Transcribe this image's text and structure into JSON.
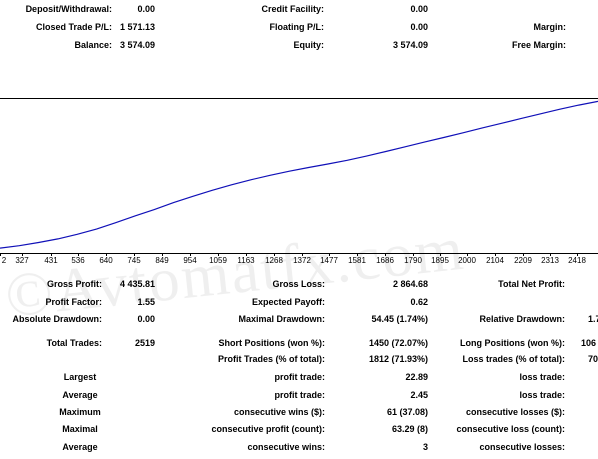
{
  "account": {
    "deposit_withdrawal_label": "Deposit/Withdrawal:",
    "deposit_withdrawal_value": "0.00",
    "credit_facility_label": "Credit Facility:",
    "credit_facility_value": "0.00",
    "closed_trade_pl_label": "Closed Trade P/L:",
    "closed_trade_pl_value": "1 571.13",
    "floating_pl_label": "Floating P/L:",
    "floating_pl_value": "0.00",
    "margin_label": "Margin:",
    "balance_label": "Balance:",
    "balance_value": "3 574.09",
    "equity_label": "Equity:",
    "equity_value": "3 574.09",
    "free_margin_label": "Free Margin:"
  },
  "chart_data": {
    "type": "line",
    "x_tick_labels": [
      "2",
      "327",
      "431",
      "536",
      "640",
      "745",
      "849",
      "954",
      "1059",
      "1163",
      "1268",
      "1372",
      "1477",
      "1581",
      "1686",
      "1790",
      "1895",
      "2000",
      "2104",
      "2209",
      "2313",
      "2418"
    ],
    "series": [
      {
        "values": [
          2003,
          2028,
          2062,
          2101,
          2150,
          2206,
          2275,
          2348,
          2415,
          2490,
          2558,
          2622,
          2681,
          2734,
          2782,
          2826,
          2866,
          2904,
          2943,
          2988,
          3037,
          3088,
          3138,
          3188,
          3238,
          3290,
          3340,
          3390,
          3440,
          3490,
          3535,
          3574
        ],
        "color": "#1010b8"
      }
    ]
  },
  "stats": {
    "gross_profit_label": "Gross Profit:",
    "gross_profit_value": "4 435.81",
    "gross_loss_label": "Gross Loss:",
    "gross_loss_value": "2 864.68",
    "total_net_profit_label": "Total Net Profit:",
    "profit_factor_label": "Profit Factor:",
    "profit_factor_value": "1.55",
    "expected_payoff_label": "Expected Payoff:",
    "expected_payoff_value": "0.62",
    "absolute_drawdown_label": "Absolute Drawdown:",
    "absolute_drawdown_value": "0.00",
    "maximal_drawdown_label": "Maximal Drawdown:",
    "maximal_drawdown_value": "54.45 (1.74%)",
    "relative_drawdown_label": "Relative Drawdown:",
    "relative_drawdown_value": "1.7",
    "total_trades_label": "Total Trades:",
    "total_trades_value": "2519",
    "short_positions_label": "Short Positions (won %):",
    "short_positions_value": "1450 (72.07%)",
    "long_positions_label": "Long Positions (won %):",
    "long_positions_value": "106",
    "profit_trades_label": "Profit Trades (% of total):",
    "profit_trades_value": "1812 (71.93%)",
    "loss_trades_label": "Loss trades (% of total):",
    "loss_trades_value": "70",
    "largest_label": "Largest",
    "largest_profit_trade_label": "profit trade:",
    "largest_profit_trade_value": "22.89",
    "largest_loss_trade_label": "loss trade:",
    "average_label": "Average",
    "average_profit_trade_label": "profit trade:",
    "average_profit_trade_value": "2.45",
    "average_loss_trade_label": "loss trade:",
    "maximum_label": "Maximum",
    "max_consec_wins_label": "consecutive wins ($):",
    "max_consec_wins_value": "61 (37.08)",
    "max_consec_losses_label": "consecutive losses ($):",
    "maximal_label": "Maximal",
    "maximal_consec_profit_label": "consecutive profit (count):",
    "maximal_consec_profit_value": "63.29 (8)",
    "maximal_consec_loss_label": "consecutive loss (count):",
    "average2_label": "Average",
    "avg_consec_wins_label": "consecutive wins:",
    "avg_consec_wins_value": "3",
    "avg_consec_losses_label": "consecutive losses:"
  },
  "watermark": "©Avtomatfx.com"
}
